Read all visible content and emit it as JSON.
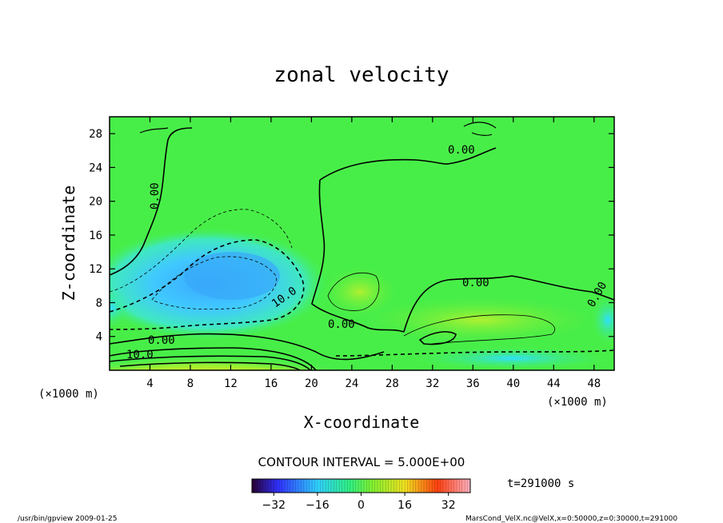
{
  "chart_data": {
    "type": "heatmap",
    "title": "zonal velocity",
    "xlabel": "X-coordinate",
    "ylabel": "Z-coordinate",
    "x_unit": "(×1000 m)",
    "y_unit": "(×1000 m)",
    "xlim": [
      0,
      50
    ],
    "ylim": [
      0,
      30
    ],
    "x_ticks": [
      4,
      8,
      12,
      16,
      20,
      24,
      28,
      32,
      36,
      40,
      44,
      48
    ],
    "y_ticks": [
      4,
      8,
      12,
      16,
      20,
      24,
      28
    ],
    "contour_interval_label": "CONTOUR INTERVAL = 5.000E+00",
    "contour_labels": [
      "0.00",
      "0.00",
      "0.00",
      "0.00",
      "0.00",
      "0.00",
      "10.0",
      "10.0"
    ],
    "colorbar": {
      "range": [
        -40,
        40
      ],
      "ticks": [
        -32,
        -16,
        0,
        16,
        32
      ],
      "tick_labels": [
        "−32",
        "−16",
        "0",
        "16",
        "32"
      ]
    },
    "time_label": "t=291000 s",
    "footer_left": "/usr/bin/gpview  2009-01-25",
    "footer_right": "MarsCond_VelX.nc@VelX,x=0:50000,z=0:30000,t=291000"
  }
}
